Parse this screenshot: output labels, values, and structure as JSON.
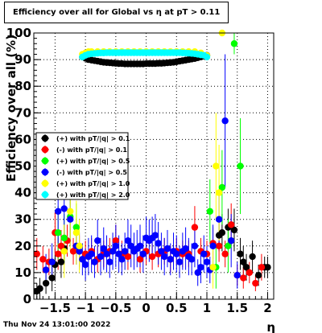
{
  "title": "Efficiency over all for Global vs   η at pT > 0.11",
  "footer_timestamp": "Thu Nov 24 13:01:00 2022",
  "chart_data": {
    "type": "scatter",
    "title": "Efficiency over all for Global vs   η at pT > 0.11",
    "xlabel": "η",
    "ylabel": "Efficiency over all (%)",
    "xlim": [
      -1.85,
      2.1
    ],
    "ylim": [
      0,
      100
    ],
    "x_ticks": [
      -1.5,
      -1,
      -0.5,
      0,
      0.5,
      1,
      1.5,
      2
    ],
    "x_tick_labels": [
      "−1.5",
      "−1",
      "−0.5",
      "0",
      "0.5",
      "1",
      "1.5",
      "2"
    ],
    "y_ticks": [
      0,
      10,
      20,
      30,
      40,
      50,
      60,
      70,
      80,
      90,
      100
    ],
    "y_tick_labels": [
      "0",
      "10",
      "20",
      "30",
      "40",
      "50",
      "60",
      "70",
      "80",
      "90",
      "100"
    ],
    "grid": true,
    "legend_position": "left",
    "series": [
      {
        "name": "(+) with pT/|q| > 0.1",
        "color": "#000000",
        "x": [
          -1.8,
          -1.75,
          -1.65,
          -1.55,
          -1.5,
          -1.4,
          -1.35,
          -1.05,
          -1.0,
          -0.95,
          -0.9,
          -0.85,
          -0.8,
          -0.75,
          -0.7,
          -0.65,
          -0.6,
          -0.55,
          -0.5,
          -0.45,
          -0.4,
          -0.35,
          -0.3,
          -0.25,
          -0.2,
          -0.15,
          -0.1,
          -0.05,
          0.0,
          0.05,
          0.1,
          0.15,
          0.2,
          0.25,
          0.3,
          0.35,
          0.4,
          0.45,
          0.5,
          0.55,
          0.6,
          0.65,
          0.7,
          0.75,
          0.8,
          0.85,
          0.9,
          0.95,
          1.0,
          1.2,
          1.25,
          1.35,
          1.45,
          1.55,
          1.6,
          1.65,
          1.75,
          1.85,
          1.95,
          2.0
        ],
        "y": [
          3,
          4,
          6,
          8,
          13,
          14,
          19,
          91,
          90.5,
          90,
          89.8,
          89.6,
          89.4,
          89.2,
          89,
          88.9,
          88.8,
          88.7,
          88.6,
          88.5,
          88.5,
          88.4,
          88.4,
          88.4,
          88.4,
          88.4,
          88.4,
          88.4,
          88.5,
          88.5,
          88.5,
          88.5,
          88.6,
          88.6,
          88.7,
          88.8,
          88.9,
          89,
          89.2,
          89.4,
          89.6,
          89.8,
          90,
          90.2,
          90.4,
          90.7,
          91,
          91.3,
          91.6,
          24,
          25,
          27,
          26,
          17,
          14,
          12,
          16,
          9,
          12,
          12
        ],
        "yerr": [
          3,
          4,
          4,
          5,
          6,
          6,
          6,
          1,
          1,
          1,
          1,
          1,
          1,
          1,
          1,
          1,
          1,
          1,
          1,
          1,
          1,
          1,
          1,
          1,
          1,
          1,
          1,
          1,
          1,
          1,
          1,
          1,
          1,
          1,
          1,
          1,
          1,
          1,
          1,
          1,
          1,
          1,
          1,
          1,
          1,
          1,
          1,
          1,
          1,
          6,
          7,
          7,
          8,
          6,
          6,
          5,
          6,
          4,
          4,
          4
        ]
      },
      {
        "name": "(-) with pT/|q| > 0.1",
        "color": "#ff0000",
        "x": [
          -1.8,
          -1.7,
          -1.6,
          -1.5,
          -1.45,
          -1.4,
          -1.3,
          -1.2,
          -1.1,
          -1.0,
          -0.9,
          -0.8,
          -0.7,
          -0.6,
          -0.5,
          -0.4,
          -0.3,
          -0.2,
          -0.1,
          0.0,
          0.1,
          0.2,
          0.3,
          0.4,
          0.5,
          0.6,
          0.7,
          0.8,
          0.9,
          1.0,
          1.1,
          1.2,
          1.3,
          1.4,
          1.5,
          1.6,
          1.7,
          1.8,
          1.9
        ],
        "y": [
          17,
          15,
          14,
          25,
          17,
          20,
          22,
          18,
          18,
          17,
          18,
          15,
          17,
          18,
          22,
          17,
          16,
          18,
          15,
          18,
          16,
          17,
          18,
          15,
          18,
          17,
          17,
          27,
          18,
          17,
          21,
          20,
          17,
          28,
          9,
          8,
          10,
          6,
          12
        ],
        "yerr": [
          6,
          5,
          5,
          8,
          6,
          6,
          6,
          5,
          6,
          5,
          5,
          5,
          5,
          5,
          6,
          5,
          5,
          5,
          5,
          5,
          5,
          5,
          5,
          5,
          5,
          5,
          5,
          8,
          5,
          5,
          6,
          6,
          5,
          8,
          4,
          4,
          4,
          3,
          5
        ]
      },
      {
        "name": "(+) with pT/|q| > 0.5",
        "color": "#00ff00",
        "x": [
          -1.45,
          -1.35,
          -1.25,
          -1.15,
          1.05,
          1.15,
          1.25,
          1.35,
          1.45,
          1.55
        ],
        "y": [
          25,
          23,
          31,
          27,
          33,
          12,
          42,
          20,
          96,
          50
        ],
        "yerr": [
          10,
          9,
          9,
          9,
          12,
          8,
          14,
          10,
          4,
          18
        ]
      },
      {
        "name": "(-) with pT/|q| > 0.5",
        "color": "#0000ff",
        "x": [
          -1.65,
          -1.55,
          -1.45,
          -1.35,
          -1.25,
          -1.15,
          -1.1,
          -1.05,
          -1.0,
          -0.95,
          -0.9,
          -0.85,
          -0.8,
          -0.75,
          -0.7,
          -0.65,
          -0.6,
          -0.55,
          -0.5,
          -0.45,
          -0.4,
          -0.35,
          -0.3,
          -0.25,
          -0.2,
          -0.15,
          -0.1,
          -0.05,
          0.0,
          0.05,
          0.1,
          0.15,
          0.2,
          0.25,
          0.3,
          0.35,
          0.4,
          0.45,
          0.5,
          0.55,
          0.6,
          0.65,
          0.7,
          0.75,
          0.8,
          0.85,
          0.9,
          0.95,
          1.0,
          1.05,
          1.1,
          1.2,
          1.3,
          1.4,
          1.5
        ],
        "y": [
          11,
          14,
          33,
          34,
          30,
          20,
          18,
          15,
          13,
          16,
          17,
          14,
          22,
          16,
          19,
          17,
          14,
          18,
          20,
          17,
          15,
          18,
          22,
          20,
          18,
          19,
          20,
          17,
          23,
          22,
          23,
          24,
          21,
          18,
          16,
          19,
          15,
          18,
          17,
          14,
          18,
          19,
          16,
          15,
          20,
          10,
          12,
          17,
          14,
          11,
          20,
          30,
          67,
          22,
          9
        ],
        "yerr": [
          6,
          7,
          12,
          12,
          10,
          7,
          7,
          6,
          6,
          7,
          7,
          6,
          8,
          7,
          8,
          7,
          6,
          7,
          8,
          7,
          6,
          7,
          8,
          8,
          7,
          7,
          8,
          7,
          8,
          8,
          8,
          8,
          8,
          7,
          7,
          7,
          6,
          7,
          7,
          6,
          7,
          8,
          7,
          6,
          8,
          5,
          6,
          7,
          6,
          5,
          8,
          10,
          25,
          10,
          5
        ]
      },
      {
        "name": "(+) with pT/|q| > 1.0",
        "color": "#ffff00",
        "x": [
          -1.35,
          -1.25,
          -1.15,
          -1.1,
          -1.05,
          -1.0,
          -0.95,
          -0.9,
          -0.8,
          -0.7,
          -0.6,
          -0.5,
          -0.4,
          -0.3,
          -0.2,
          -0.1,
          0.0,
          0.1,
          0.2,
          0.3,
          0.4,
          0.5,
          0.6,
          0.7,
          0.8,
          0.9,
          1.0,
          1.1,
          1.15,
          1.2,
          1.25
        ],
        "y": [
          18,
          33,
          25,
          20,
          92,
          92.5,
          93,
          93,
          93,
          93,
          93,
          93,
          93,
          93,
          93,
          93,
          93,
          93,
          93,
          93,
          93,
          93,
          93,
          93,
          93,
          92.5,
          91.5,
          12,
          50,
          40,
          100
        ],
        "yerr": [
          10,
          15,
          12,
          10,
          1,
          1,
          1,
          1,
          1,
          1,
          1,
          1,
          1,
          1,
          1,
          1,
          1,
          1,
          1,
          1,
          1,
          1,
          1,
          1,
          1,
          1,
          1,
          8,
          20,
          18,
          0
        ]
      },
      {
        "name": "(+) with pT/|q| > 2.0",
        "color": "#00ffff",
        "x": [
          -1.05,
          -1.0,
          -0.95,
          -0.9,
          -0.85,
          -0.8,
          -0.75,
          -0.7,
          -0.65,
          -0.6,
          -0.55,
          -0.5,
          -0.45,
          -0.4,
          -0.35,
          -0.3,
          -0.25,
          -0.2,
          -0.15,
          -0.1,
          -0.05,
          0.0,
          0.05,
          0.1,
          0.15,
          0.2,
          0.25,
          0.3,
          0.35,
          0.4,
          0.45,
          0.5,
          0.55,
          0.6,
          0.65,
          0.7,
          0.75,
          0.8,
          0.85,
          0.9,
          0.95,
          1.0
        ],
        "y": [
          91,
          91.6,
          92,
          92.2,
          92.3,
          92.4,
          92.5,
          92.5,
          92.6,
          92.6,
          92.6,
          92.6,
          92.6,
          92.6,
          92.6,
          92.6,
          92.6,
          92.6,
          92.6,
          92.6,
          92.6,
          92.6,
          92.6,
          92.6,
          92.6,
          92.6,
          92.6,
          92.6,
          92.6,
          92.6,
          92.6,
          92.6,
          92.6,
          92.5,
          92.5,
          92.4,
          92.3,
          92.2,
          92,
          91.8,
          91.6,
          91
        ],
        "yerr": [
          1,
          1,
          1,
          1,
          1,
          1,
          1,
          1,
          1,
          1,
          1,
          1,
          1,
          1,
          1,
          1,
          1,
          1,
          1,
          1,
          1,
          1,
          1,
          1,
          1,
          1,
          1,
          1,
          1,
          1,
          1,
          1,
          1,
          1,
          1,
          1,
          1,
          1,
          1,
          1,
          1,
          1
        ]
      }
    ]
  }
}
